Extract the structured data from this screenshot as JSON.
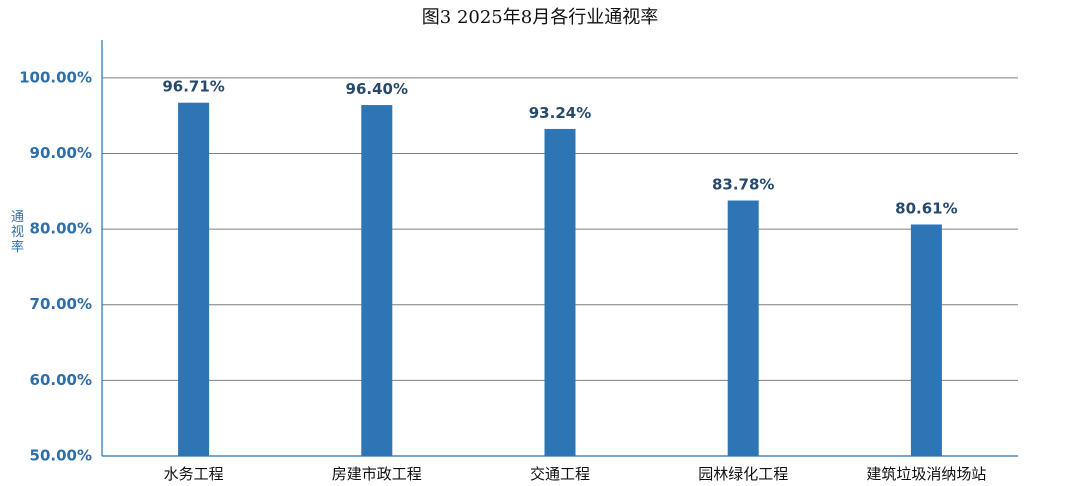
{
  "chart_data": {
    "type": "bar",
    "title": "图3 2025年8月各行业通视率",
    "xlabel": "",
    "ylabel": "通视率",
    "categories": [
      "水务工程",
      "房建市政工程",
      "交通工程",
      "园林绿化工程",
      "建筑垃圾消纳场站"
    ],
    "values": [
      96.71,
      96.4,
      93.24,
      83.78,
      80.61
    ],
    "value_labels": [
      "96.71%",
      "96.40%",
      "93.24%",
      "83.78%",
      "80.61%"
    ],
    "ylim": [
      50,
      105
    ],
    "yticks": [
      50,
      60,
      70,
      80,
      90,
      100
    ],
    "ytick_labels": [
      "50.00%",
      "60.00%",
      "70.00%",
      "80.00%",
      "90.00%",
      "100.00%"
    ],
    "grid": true,
    "legend": "none",
    "colors": {
      "bar": "#2e75b6",
      "axis": "#2f6fa7",
      "grid": "#7f7f7f",
      "data_label": "#264a6e",
      "tick_label": "#2f6fa7"
    }
  }
}
